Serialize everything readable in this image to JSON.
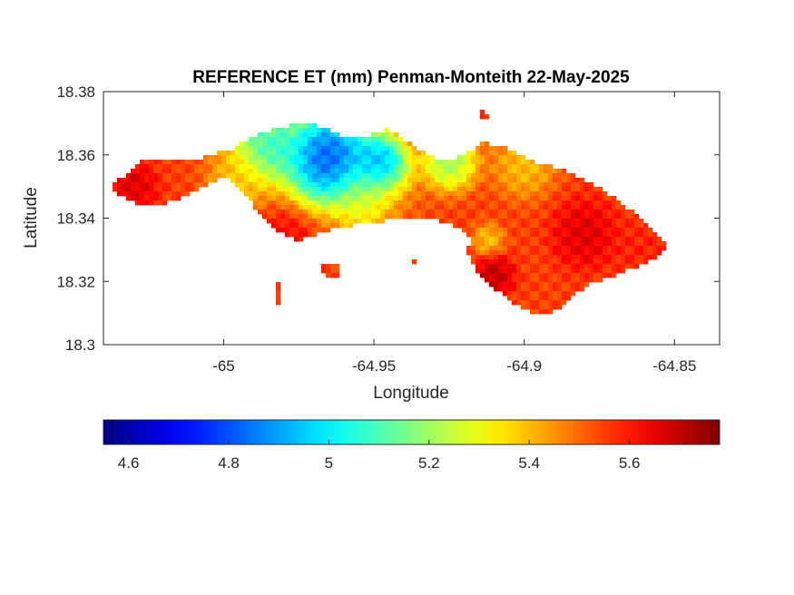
{
  "chart_data": {
    "type": "heatmap",
    "title": "REFERENCE ET (mm) Penman-Monteith 22-May-2025",
    "xlabel": "Longitude",
    "ylabel": "Latitude",
    "xlim": [
      -65.04,
      -64.835
    ],
    "ylim": [
      18.3,
      18.38
    ],
    "xticks": [
      -65,
      -64.95,
      -64.9,
      -64.85
    ],
    "yticks": [
      18.3,
      18.32,
      18.34,
      18.36,
      18.38
    ],
    "xtick_labels": [
      "-65",
      "-64.95",
      "-64.9",
      "-64.85"
    ],
    "ytick_labels": [
      "18.3",
      "18.32",
      "18.34",
      "18.36",
      "18.38"
    ],
    "colormap": "jet",
    "clim": [
      4.55,
      5.78
    ],
    "colorbar": {
      "location": "south",
      "ticks": [
        4.6,
        4.8,
        5.0,
        5.2,
        5.4,
        5.6
      ],
      "tick_labels": [
        "4.6",
        "4.8",
        "5",
        "5.2",
        "5.4",
        "5.6"
      ]
    },
    "regions": [
      {
        "name": "main-island",
        "outline": [
          [
            -65.037,
            18.351
          ],
          [
            -65.032,
            18.354
          ],
          [
            -65.027,
            18.358
          ],
          [
            -65.018,
            18.359
          ],
          [
            -65.01,
            18.358
          ],
          [
            -65.004,
            18.36
          ],
          [
            -64.997,
            18.362
          ],
          [
            -64.99,
            18.366
          ],
          [
            -64.98,
            18.369
          ],
          [
            -64.975,
            18.37
          ],
          [
            -64.968,
            18.369
          ],
          [
            -64.96,
            18.366
          ],
          [
            -64.952,
            18.366
          ],
          [
            -64.945,
            18.368
          ],
          [
            -64.94,
            18.365
          ],
          [
            -64.932,
            18.36
          ],
          [
            -64.925,
            18.358
          ],
          [
            -64.92,
            18.36
          ],
          [
            -64.914,
            18.364
          ],
          [
            -64.908,
            18.363
          ],
          [
            -64.902,
            18.36
          ],
          [
            -64.897,
            18.358
          ],
          [
            -64.892,
            18.357
          ],
          [
            -64.886,
            18.355
          ],
          [
            -64.88,
            18.352
          ],
          [
            -64.874,
            18.349
          ],
          [
            -64.868,
            18.345
          ],
          [
            -64.862,
            18.341
          ],
          [
            -64.857,
            18.336
          ],
          [
            -64.852,
            18.331
          ],
          [
            -64.856,
            18.327
          ],
          [
            -64.862,
            18.325
          ],
          [
            -64.87,
            18.322
          ],
          [
            -64.878,
            18.319
          ],
          [
            -64.884,
            18.316
          ],
          [
            -64.888,
            18.312
          ],
          [
            -64.892,
            18.309
          ],
          [
            -64.9,
            18.311
          ],
          [
            -64.905,
            18.314
          ],
          [
            -64.91,
            18.318
          ],
          [
            -64.916,
            18.323
          ],
          [
            -64.919,
            18.329
          ],
          [
            -64.918,
            18.334
          ],
          [
            -64.924,
            18.338
          ],
          [
            -64.932,
            18.34
          ],
          [
            -64.94,
            18.34
          ],
          [
            -64.948,
            18.339
          ],
          [
            -64.955,
            18.338
          ],
          [
            -64.962,
            18.337
          ],
          [
            -64.968,
            18.335
          ],
          [
            -64.975,
            18.333
          ],
          [
            -64.982,
            18.336
          ],
          [
            -64.99,
            18.344
          ],
          [
            -64.995,
            18.35
          ],
          [
            -65.0,
            18.353
          ],
          [
            -65.008,
            18.349
          ],
          [
            -65.015,
            18.346
          ],
          [
            -65.022,
            18.344
          ],
          [
            -65.03,
            18.345
          ],
          [
            -65.036,
            18.348
          ]
        ]
      },
      {
        "name": "islet-1",
        "outline": [
          [
            -64.916,
            18.375
          ],
          [
            -64.913,
            18.374
          ],
          [
            -64.911,
            18.371
          ],
          [
            -64.914,
            18.372
          ]
        ]
      },
      {
        "name": "islet-2",
        "outline": [
          [
            -64.968,
            18.325
          ],
          [
            -64.962,
            18.326
          ],
          [
            -64.961,
            18.322
          ],
          [
            -64.966,
            18.321
          ]
        ]
      },
      {
        "name": "islet-3",
        "outline": [
          [
            -64.983,
            18.32
          ],
          [
            -64.981,
            18.319
          ],
          [
            -64.981,
            18.313
          ],
          [
            -64.983,
            18.313
          ]
        ]
      },
      {
        "name": "islet-4",
        "outline": [
          [
            -64.956,
            18.329
          ],
          [
            -64.955,
            18.329
          ],
          [
            -64.955,
            18.327
          ],
          [
            -64.956,
            18.327
          ]
        ]
      },
      {
        "name": "islet-5",
        "outline": [
          [
            -64.937,
            18.327
          ],
          [
            -64.936,
            18.327
          ],
          [
            -64.936,
            18.325
          ],
          [
            -64.937,
            18.325
          ]
        ]
      }
    ],
    "value_features": [
      {
        "lon": -64.965,
        "lat": 18.359,
        "value": 4.58,
        "radius": 0.011
      },
      {
        "lon": -64.948,
        "lat": 18.357,
        "value": 4.7,
        "radius": 0.007
      },
      {
        "lon": -64.985,
        "lat": 18.363,
        "value": 4.95,
        "radius": 0.009
      },
      {
        "lon": -64.925,
        "lat": 18.358,
        "value": 5.1,
        "radius": 0.007
      },
      {
        "lon": -64.9,
        "lat": 18.357,
        "value": 5.35,
        "radius": 0.008
      },
      {
        "lon": -64.95,
        "lat": 18.347,
        "value": 5.2,
        "radius": 0.01
      },
      {
        "lon": -64.912,
        "lat": 18.333,
        "value": 5.35,
        "radius": 0.004
      },
      {
        "lon": -64.995,
        "lat": 18.353,
        "value": 5.35,
        "radius": 0.008
      },
      {
        "lon": -65.03,
        "lat": 18.35,
        "value": 5.7,
        "radius": 0.006
      },
      {
        "lon": -64.91,
        "lat": 18.322,
        "value": 5.75,
        "radius": 0.005
      },
      {
        "lon": -64.88,
        "lat": 18.335,
        "value": 5.7,
        "radius": 0.008
      },
      {
        "lon": -64.86,
        "lat": 18.33,
        "value": 5.6,
        "radius": 0.008
      },
      {
        "lon": -64.94,
        "lat": 18.34,
        "value": 5.55,
        "radius": 0.008
      },
      {
        "lon": -64.98,
        "lat": 18.332,
        "value": 5.65,
        "radius": 0.007
      }
    ],
    "background_value": 5.55
  }
}
